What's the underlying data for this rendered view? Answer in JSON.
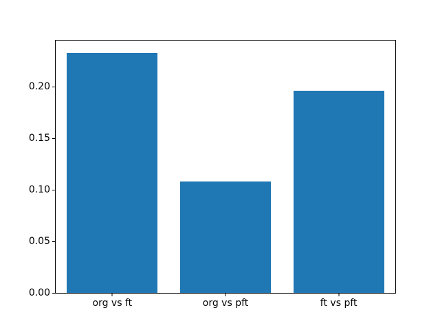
{
  "chart_data": {
    "type": "bar",
    "categories": [
      "org vs ft",
      "org vs pft",
      "ft vs pft"
    ],
    "values": [
      0.233,
      0.108,
      0.196
    ],
    "title": "",
    "xlabel": "",
    "ylabel": "",
    "ylim": [
      0,
      0.2447
    ],
    "yticks": [
      0.0,
      0.05,
      0.1,
      0.15,
      0.2
    ],
    "ytick_labels": [
      "0.00",
      "0.05",
      "0.10",
      "0.15",
      "0.20"
    ],
    "bar_color": "#1f77b4",
    "bar_width_fraction": 0.8,
    "grid": false,
    "legend": null
  }
}
